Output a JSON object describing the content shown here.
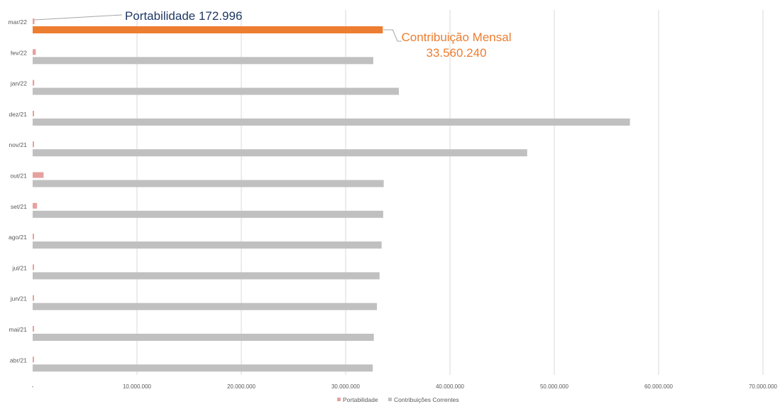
{
  "chart_data": {
    "type": "bar",
    "orientation": "horizontal",
    "categories": [
      "mar/22",
      "fev/22",
      "jan/22",
      "dez/21",
      "nov/21",
      "out/21",
      "set/21",
      "ago/21",
      "jul/21",
      "jun/21",
      "mai/21",
      "abr/21"
    ],
    "series": [
      {
        "name": "Portabilidade",
        "color": "#e6a19e",
        "highlight_color": "#e6a19e",
        "values": [
          172996,
          300000,
          150000,
          100000,
          30000,
          1050000,
          420000,
          30000,
          60000,
          60000,
          100000,
          120000
        ]
      },
      {
        "name": "Contribuições Correntes",
        "color": "#c0c0c0",
        "highlight_color": "#ed7d31",
        "values": [
          33560240,
          32650000,
          35100000,
          57250000,
          47400000,
          33650000,
          33600000,
          33450000,
          33250000,
          33000000,
          32700000,
          32600000
        ]
      }
    ],
    "highlight_category": "mar/22",
    "xlim": [
      0,
      70000000
    ],
    "xticks": [
      0,
      10000000,
      20000000,
      30000000,
      40000000,
      50000000,
      60000000,
      70000000
    ],
    "xtick_labels": [
      "-",
      "10.000.000",
      "20.000.000",
      "30.000.000",
      "40.000.000",
      "50.000.000",
      "60.000.000",
      "70.000.000"
    ],
    "grid": true,
    "legend_position": "bottom",
    "annotations": [
      {
        "text": "Portabilidade 172.996",
        "series": "Portabilidade",
        "category": "mar/22",
        "color": "#1f3864"
      },
      {
        "lines": [
          "Contribuição Mensal",
          "33.560.240"
        ],
        "series": "Contribuições Correntes",
        "category": "mar/22",
        "color": "#ed7d31"
      }
    ],
    "title": "",
    "xlabel": "",
    "ylabel": ""
  }
}
